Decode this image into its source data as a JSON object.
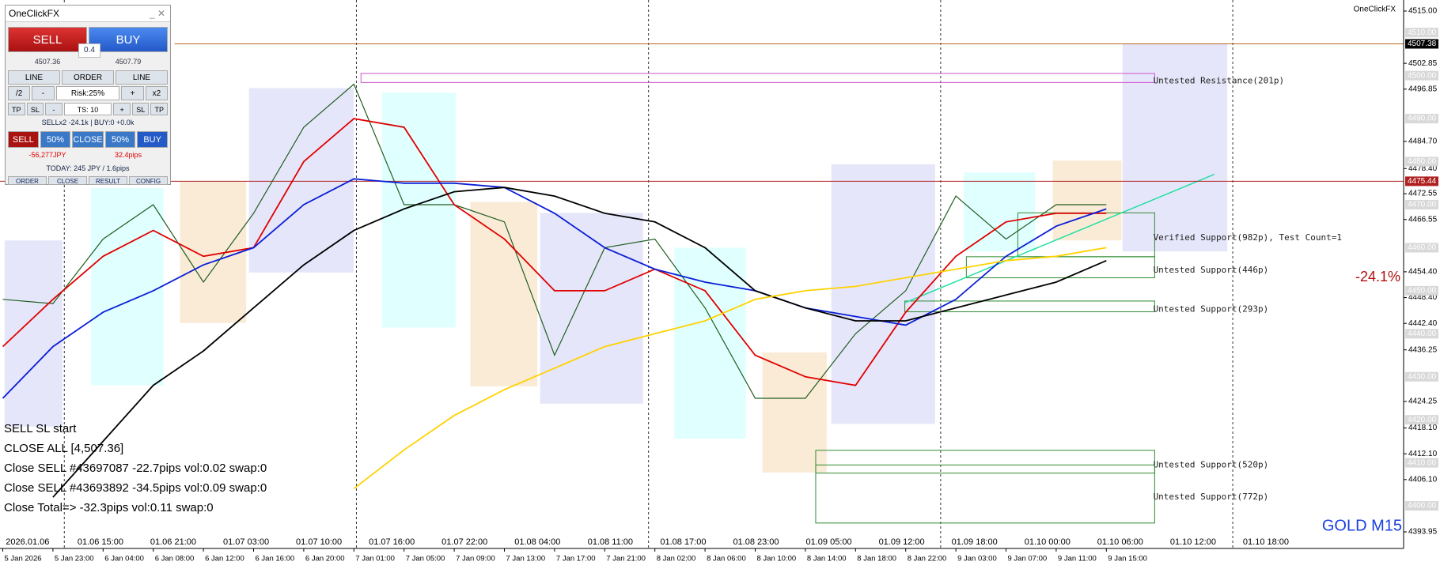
{
  "panel": {
    "title": "OneClickFX",
    "sell": "SELL",
    "buy": "BUY",
    "lot": "0.4",
    "sell_price": "4507.36",
    "buy_price": "4507.79",
    "row1": [
      "LINE",
      "ORDER",
      "LINE"
    ],
    "row2": [
      "/2",
      "-",
      "Risk:25%",
      "+",
      "x2"
    ],
    "row3": [
      "TP",
      "SL",
      "-",
      "TS: 10",
      "+",
      "SL",
      "TP"
    ],
    "status": "SELLx2 -24.1k | BUY:0 +0.0k",
    "row4": [
      "SELL",
      "50%",
      "CLOSE",
      "50%",
      "BUY"
    ],
    "pnl": "-56,277JPY",
    "pips": "32.4pips",
    "today": "TODAY: 245 JPY / 1.6pips",
    "tabs": [
      "ORDER",
      "CLOSE",
      "RESULT",
      "CONFIG"
    ]
  },
  "messages": [
    "SELL SL start",
    "CLOSE ALL [4,507.36]",
    "Close SELL #43697087 -22.7pips vol:0.02 swap:0",
    "Close SELL #43693892 -34.5pips vol:0.09 swap:0",
    "Close Total=> -32.3pips vol:0.11 swap:0"
  ],
  "chart_data": {
    "type": "line",
    "symbol": "GOLD M15",
    "brand": "OneClickFX",
    "change_label": "-24.1%",
    "categories": [
      "5 Jan 2026",
      "5 Jan 23:00",
      "6 Jan 04:00",
      "6 Jan 08:00",
      "6 Jan 12:00",
      "6 Jan 16:00",
      "6 Jan 20:00",
      "7 Jan 01:00",
      "7 Jan 05:00",
      "7 Jan 09:00",
      "7 Jan 13:00",
      "7 Jan 17:00",
      "7 Jan 21:00",
      "8 Jan 02:00",
      "8 Jan 06:00",
      "8 Jan 10:00",
      "8 Jan 14:00",
      "8 Jan 18:00",
      "8 Jan 22:00",
      "9 Jan 03:00",
      "9 Jan 07:00",
      "9 Jan 11:00",
      "9 Jan 15:00"
    ],
    "upper_time_labels": [
      "2026.01.06",
      "01.06 15:00",
      "01.06 21:00",
      "01.07 03:00",
      "01.07 10:00",
      "01.07 16:00",
      "01.07 22:00",
      "01.08 04:00",
      "01.08 11:00",
      "01.08 17:00",
      "01.08 23:00",
      "01.09 05:00",
      "01.09 12:00",
      "01.09 18:00",
      "01.10 00:00",
      "01.10 06:00",
      "01.10 12:00",
      "01.10 18:00"
    ],
    "series": [
      {
        "color": "#1f5e1f",
        "values": [
          4448,
          4447,
          4462,
          4470,
          4452,
          4468,
          4488,
          4498,
          4470,
          4470,
          4466,
          4435,
          4460,
          4462,
          4446,
          4425,
          4425,
          4440,
          4450,
          4472,
          4462,
          4470,
          4470
        ]
      },
      {
        "color": "#e00000",
        "values": [
          4437,
          4448,
          4458,
          4464,
          4458,
          4460,
          4480,
          4490,
          4488,
          4470,
          4462,
          4450,
          4450,
          4455,
          4450,
          4435,
          4430,
          4428,
          4445,
          4458,
          4466,
          4468,
          4468
        ]
      },
      {
        "color": "#0a1fd6",
        "values": [
          4425,
          4437,
          4445,
          4450,
          4456,
          4460,
          4470,
          4476,
          4475,
          4475,
          4474,
          4468,
          4460,
          4455,
          4452,
          4450,
          4446,
          4444,
          4442,
          4448,
          4458,
          4465,
          4469
        ]
      },
      {
        "color": "#000000",
        "values": [
          null,
          4402,
          4415,
          4428,
          4436,
          4446,
          4456,
          4464,
          4469,
          4473,
          4474,
          4472,
          4468,
          4466,
          4460,
          4450,
          4446,
          4443,
          4443,
          4446,
          4449,
          4452,
          4457
        ]
      },
      {
        "color": "#ffd200",
        "values": [
          null,
          null,
          null,
          null,
          null,
          null,
          null,
          4404,
          4413,
          4421,
          4427,
          4432,
          4437,
          4440,
          4443,
          4448,
          4450,
          4451,
          4453,
          4455,
          4457,
          4458,
          4460
        ]
      }
    ],
    "ylim": [
      4393.95,
      4515.0
    ],
    "yticks": [
      {
        "value": 4515.0,
        "label": "4515.00"
      },
      {
        "value": 4502.85,
        "label": "4502.85"
      },
      {
        "value": 4496.85,
        "label": "4496.85"
      },
      {
        "value": 4484.7,
        "label": "4484.70"
      },
      {
        "value": 4478.4,
        "label": "4478.40"
      },
      {
        "value": 4472.55,
        "label": "4472.55"
      },
      {
        "value": 4466.55,
        "label": "4466.55"
      },
      {
        "value": 4454.4,
        "label": "4454.40"
      },
      {
        "value": 4448.4,
        "label": "4448.40"
      },
      {
        "value": 4442.4,
        "label": "4442.40"
      },
      {
        "value": 4436.25,
        "label": "4436.25"
      },
      {
        "value": 4424.25,
        "label": "4424.25"
      },
      {
        "value": 4418.1,
        "label": "4418.10"
      },
      {
        "value": 4412.1,
        "label": "4412.10"
      },
      {
        "value": 4406.1,
        "label": "4406.10"
      },
      {
        "value": 4393.95,
        "label": "4393.95"
      }
    ],
    "level_boxes": [
      {
        "value": 4510.0,
        "label": "4510.00"
      },
      {
        "value": 4500.0,
        "label": "4500.00"
      },
      {
        "value": 4490.0,
        "label": "4490.00"
      },
      {
        "value": 4480.0,
        "label": "4480.00"
      },
      {
        "value": 4470.0,
        "label": "4470.00"
      },
      {
        "value": 4460.0,
        "label": "4460.00"
      },
      {
        "value": 4450.0,
        "label": "4450.00"
      },
      {
        "value": 4440.0,
        "label": "4440.00"
      },
      {
        "value": 4430.0,
        "label": "4430.00"
      },
      {
        "value": 4420.0,
        "label": "4420.00"
      },
      {
        "value": 4410.0,
        "label": "4410.00"
      },
      {
        "value": 4400.0,
        "label": "4400.00"
      }
    ],
    "price_line": {
      "value": 4507.38,
      "label": "4507.38"
    },
    "level_line": {
      "value": 4475.44,
      "label": "4475.44"
    },
    "zones": [
      {
        "label": "Untested Resistance(201p)",
        "range": [
          4500.5,
          4498.4
        ],
        "color": "#cc55cc"
      },
      {
        "label": "Verified Support(982p), Test Count=1",
        "range": [
          4468.1,
          4457.9
        ],
        "color": "#2e8b2e"
      },
      {
        "label": "Untested Support(446p)",
        "range": [
          4457.9,
          4453.0
        ],
        "color": "#2e8b2e"
      },
      {
        "label": "Untested Support(293p)",
        "range": [
          4447.6,
          4445.1
        ],
        "color": "#2e8b2e"
      },
      {
        "label": "Untested Support(520p)",
        "range": [
          4412.9,
          4407.6
        ],
        "color": "#2e8b2e"
      },
      {
        "label": "Untested Support(772p)",
        "range": [
          4409.5,
          4396.0
        ],
        "color": "#2e8b2e"
      }
    ]
  }
}
